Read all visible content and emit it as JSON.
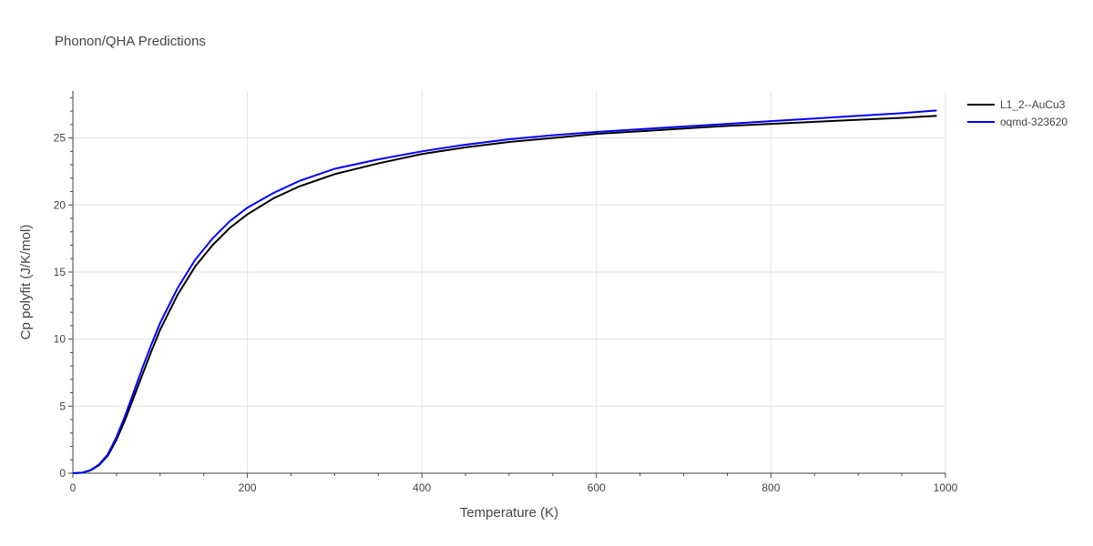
{
  "chart_data": {
    "type": "line",
    "title": "Phonon/QHA Predictions",
    "xlabel": "Temperature (K)",
    "ylabel": "Cp polyfit (J/K/mol)",
    "xlim": [
      0,
      1000
    ],
    "ylim": [
      0,
      28.5
    ],
    "xticks": [
      0,
      200,
      400,
      600,
      800,
      1000
    ],
    "yticks": [
      0,
      5,
      10,
      15,
      20,
      25
    ],
    "grid": true,
    "legend_position": "top-right",
    "series": [
      {
        "name": "L1_2--AuCu3",
        "color": "#000000",
        "x": [
          0,
          10,
          20,
          30,
          40,
          50,
          60,
          70,
          80,
          90,
          100,
          120,
          140,
          160,
          180,
          200,
          230,
          260,
          300,
          350,
          400,
          450,
          500,
          550,
          600,
          650,
          700,
          750,
          800,
          850,
          900,
          950,
          990
        ],
        "y": [
          0,
          0.03,
          0.2,
          0.6,
          1.3,
          2.5,
          4.0,
          5.7,
          7.4,
          9.1,
          10.7,
          13.3,
          15.4,
          17.0,
          18.3,
          19.3,
          20.5,
          21.4,
          22.3,
          23.1,
          23.8,
          24.3,
          24.7,
          25.0,
          25.3,
          25.5,
          25.7,
          25.9,
          26.05,
          26.2,
          26.35,
          26.5,
          26.65
        ]
      },
      {
        "name": "oqmd-323620",
        "color": "#0000ff",
        "x": [
          0,
          10,
          20,
          30,
          40,
          50,
          60,
          70,
          80,
          90,
          100,
          120,
          140,
          160,
          180,
          200,
          230,
          260,
          300,
          350,
          400,
          450,
          500,
          550,
          600,
          650,
          700,
          750,
          800,
          850,
          900,
          950,
          990
        ],
        "y": [
          0,
          0.03,
          0.22,
          0.65,
          1.4,
          2.7,
          4.3,
          6.1,
          7.9,
          9.6,
          11.2,
          13.8,
          15.9,
          17.5,
          18.8,
          19.8,
          20.9,
          21.8,
          22.7,
          23.4,
          24.0,
          24.5,
          24.9,
          25.2,
          25.45,
          25.65,
          25.85,
          26.05,
          26.25,
          26.45,
          26.65,
          26.85,
          27.05
        ]
      }
    ]
  }
}
